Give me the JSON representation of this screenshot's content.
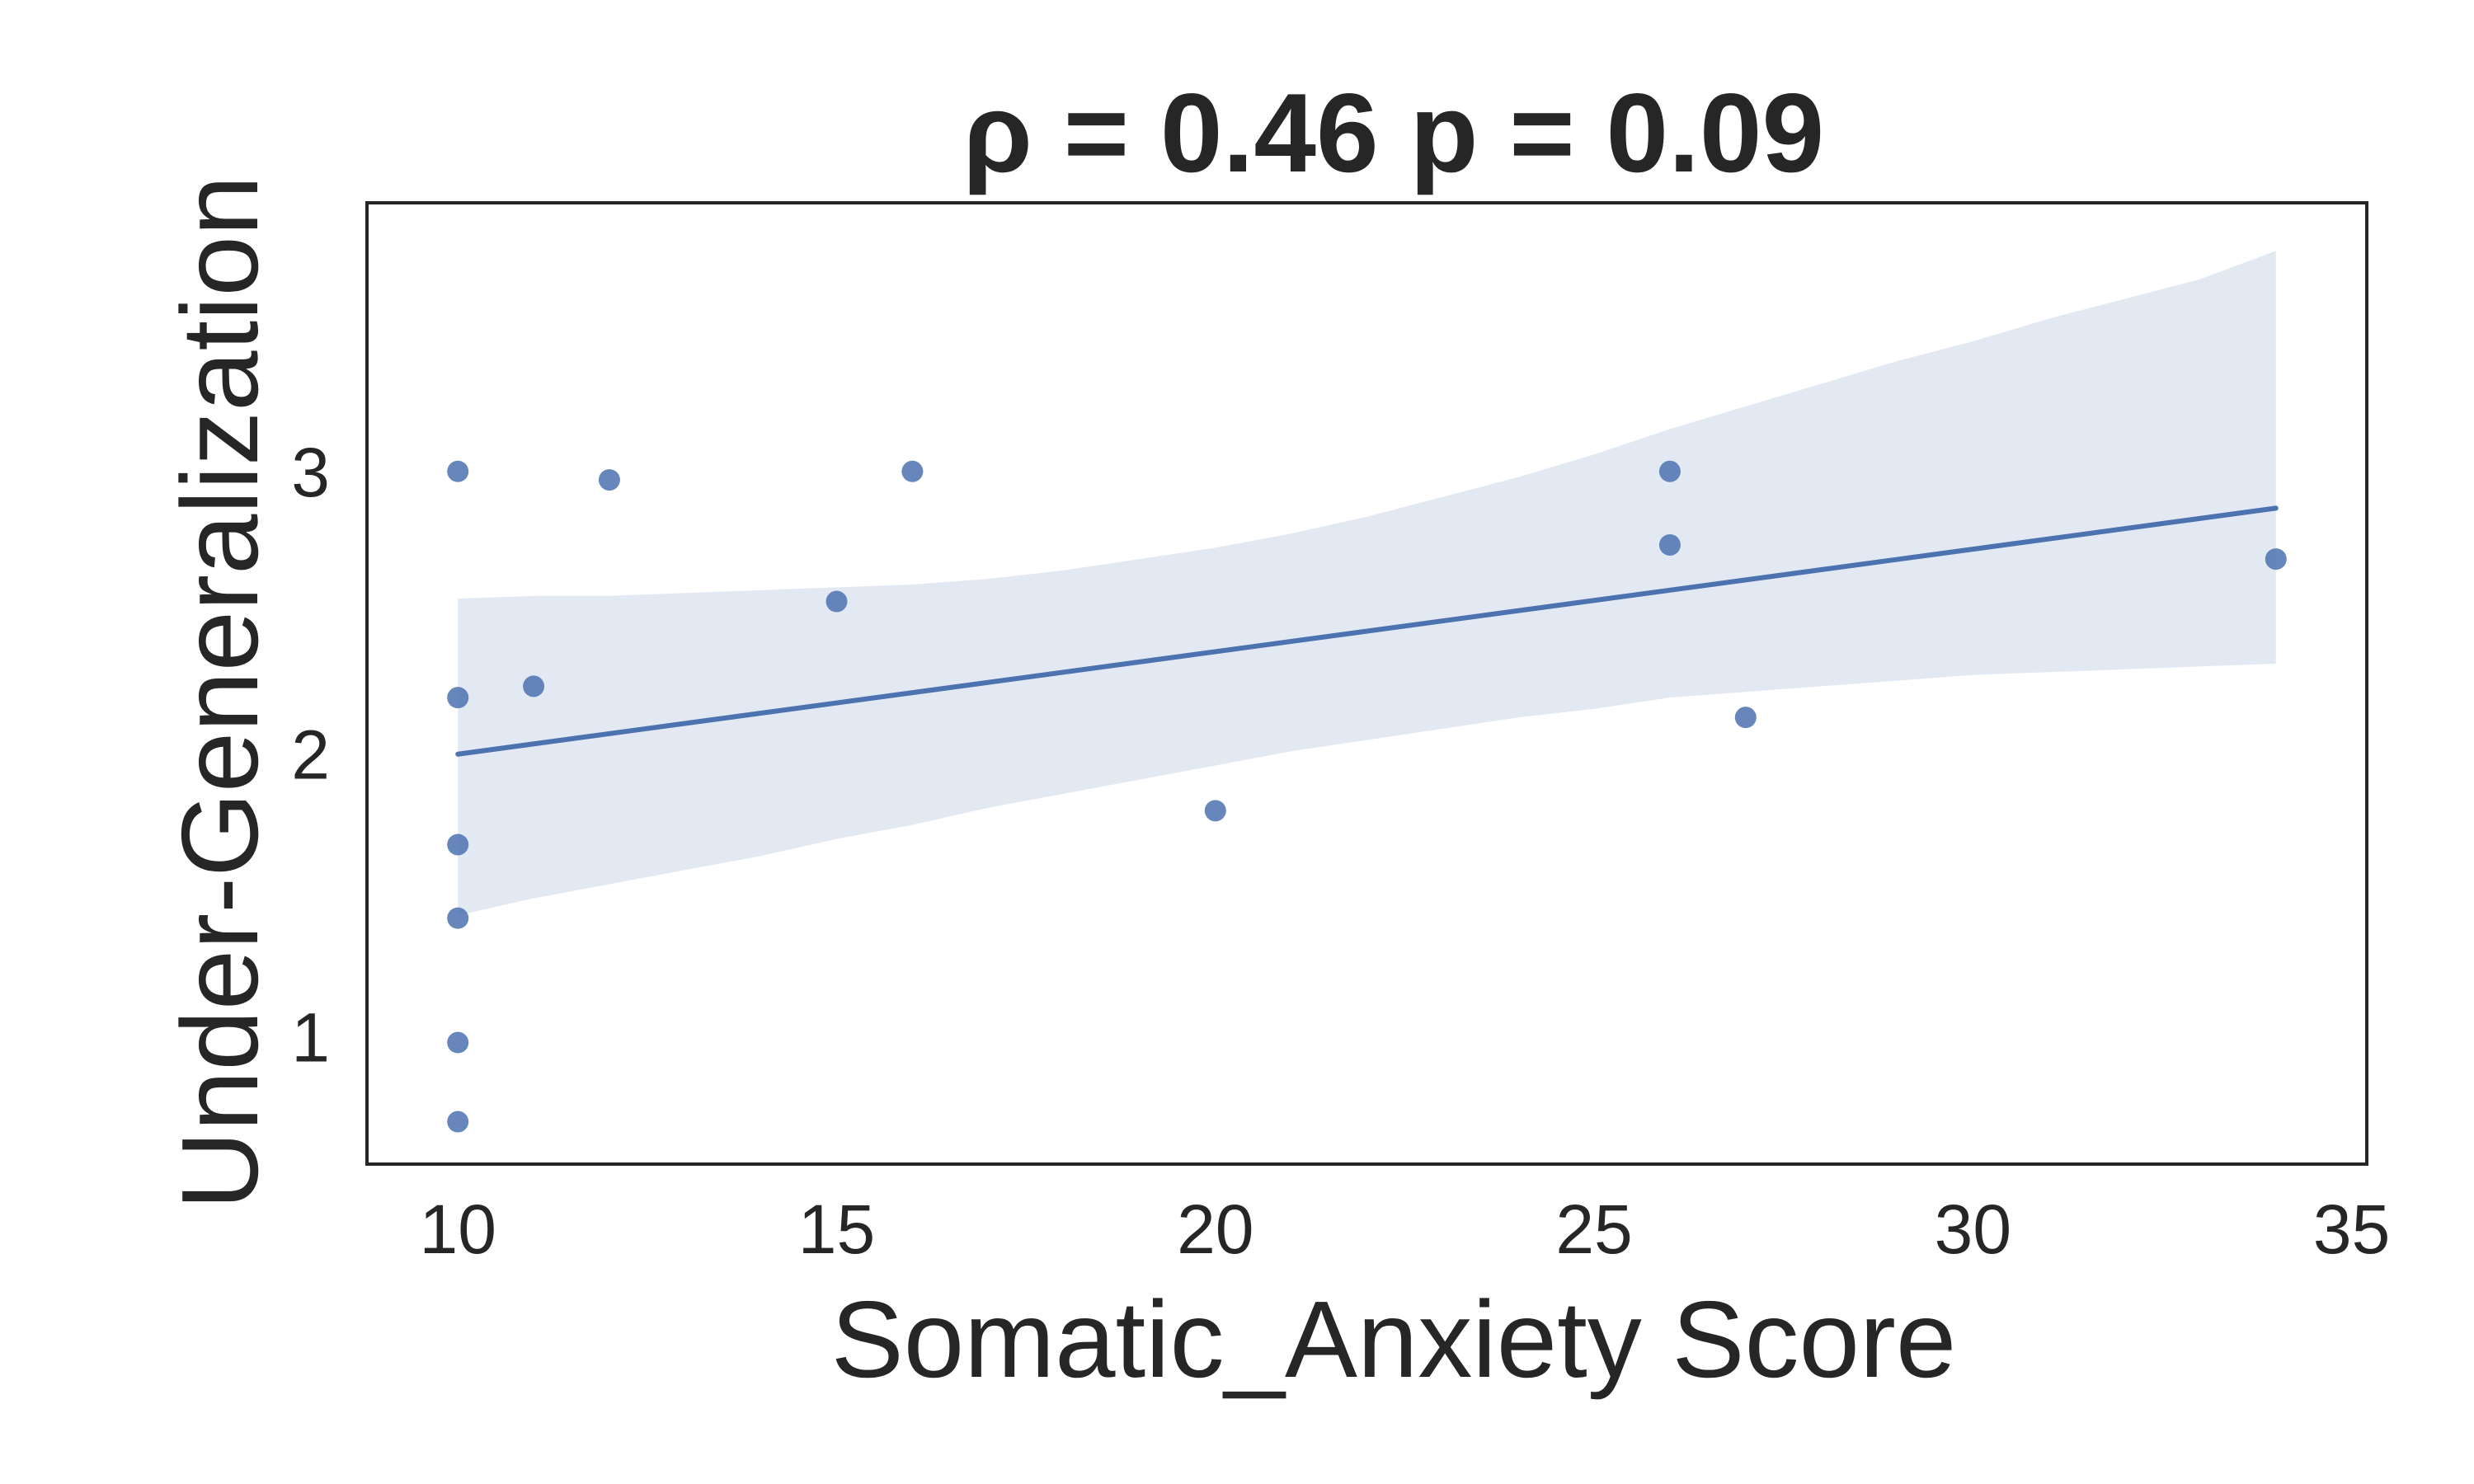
{
  "chart_data": {
    "type": "scatter",
    "title": "ρ = 0.46 p = 0.09",
    "xlabel": "Somatic_Anxiety Score",
    "ylabel": "Under-Generalization",
    "xlim": [
      8.8,
      35.2
    ],
    "ylim": [
      0.55,
      3.95
    ],
    "xticks": [
      10,
      15,
      20,
      25,
      30,
      35
    ],
    "yticks": [
      1,
      2,
      3
    ],
    "grid": false,
    "colors": {
      "points": "#4c72b0",
      "line": "#4c72b0",
      "band": "#e3e9f3",
      "frame": "#262626",
      "text": "#262626"
    },
    "points": [
      {
        "x": 10,
        "y": 3.0
      },
      {
        "x": 10,
        "y": 2.2
      },
      {
        "x": 10,
        "y": 1.68
      },
      {
        "x": 10,
        "y": 1.42
      },
      {
        "x": 10,
        "y": 0.98
      },
      {
        "x": 10,
        "y": 0.7
      },
      {
        "x": 11,
        "y": 2.24
      },
      {
        "x": 12,
        "y": 2.97
      },
      {
        "x": 15,
        "y": 2.54
      },
      {
        "x": 16,
        "y": 3.0
      },
      {
        "x": 20,
        "y": 1.8
      },
      {
        "x": 26,
        "y": 3.0
      },
      {
        "x": 26,
        "y": 2.74
      },
      {
        "x": 27,
        "y": 2.13
      },
      {
        "x": 34,
        "y": 2.69
      }
    ],
    "regression": {
      "x": [
        10,
        34
      ],
      "y": [
        2.0,
        2.87
      ]
    },
    "confidence_band": {
      "x": [
        10,
        11,
        12,
        13,
        14,
        15,
        16,
        17,
        18,
        19,
        20,
        21,
        22,
        23,
        24,
        25,
        26,
        27,
        28,
        29,
        30,
        31,
        32,
        33,
        34
      ],
      "upper": [
        2.55,
        2.56,
        2.56,
        2.57,
        2.58,
        2.59,
        2.6,
        2.62,
        2.65,
        2.69,
        2.73,
        2.78,
        2.84,
        2.91,
        2.98,
        3.06,
        3.15,
        3.23,
        3.31,
        3.39,
        3.46,
        3.54,
        3.61,
        3.68,
        3.78
      ],
      "lower": [
        1.43,
        1.49,
        1.54,
        1.59,
        1.64,
        1.7,
        1.75,
        1.81,
        1.86,
        1.91,
        1.96,
        2.01,
        2.05,
        2.09,
        2.13,
        2.16,
        2.2,
        2.22,
        2.24,
        2.26,
        2.28,
        2.29,
        2.3,
        2.31,
        2.32
      ]
    }
  }
}
